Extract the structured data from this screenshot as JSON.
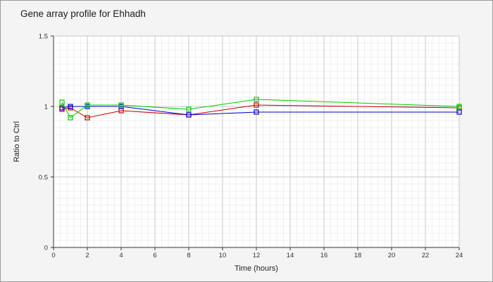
{
  "chart_data": {
    "type": "line",
    "title": "Gene array profile for Ehhadh",
    "xlabel": "Time (hours)",
    "ylabel": "Ratio to Ctrl",
    "xlim": [
      0,
      24
    ],
    "ylim": [
      0,
      1.5
    ],
    "x_ticks": [
      0,
      2,
      4,
      6,
      8,
      10,
      12,
      14,
      16,
      18,
      20,
      22,
      24
    ],
    "y_ticks": [
      0,
      0.5,
      1,
      1.5
    ],
    "y_tick_labels": [
      "0",
      "0.5",
      "1",
      "1.5"
    ],
    "grid": true,
    "marker": "square",
    "series": [
      {
        "color": "#cc0000",
        "x": [
          0.5,
          1,
          2,
          4,
          8,
          12,
          24
        ],
        "y": [
          0.98,
          0.99,
          0.92,
          0.97,
          0.94,
          1.01,
          0.99
        ]
      },
      {
        "color": "#0000cc",
        "x": [
          0.5,
          1,
          2,
          4,
          8,
          12,
          24
        ],
        "y": [
          0.99,
          1.0,
          1.0,
          1.0,
          0.94,
          0.96,
          0.96
        ]
      },
      {
        "color": "#00cc00",
        "x": [
          0.5,
          1,
          2,
          4,
          8,
          12,
          24
        ],
        "y": [
          1.03,
          0.92,
          1.01,
          1.01,
          0.98,
          1.05,
          1.0
        ]
      }
    ]
  }
}
